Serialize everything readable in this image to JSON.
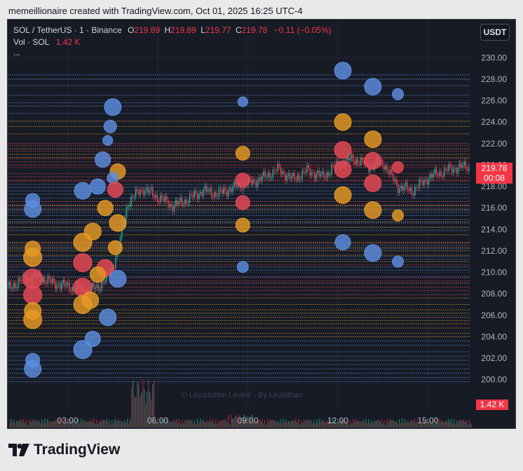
{
  "header": {
    "caption": "memeillionaire created with TradingView.com, Oct 01, 2025 16:25 UTC-4"
  },
  "legend": {
    "symbol": "SOL / TetherUS · 1 · Binance",
    "o_label": "O",
    "o_value": "219.89",
    "h_label": "H",
    "h_value": "219.89",
    "l_label": "L",
    "l_value": "219.77",
    "c_label": "C",
    "c_value": "219.78",
    "change": "−0.11 (−0.05%)",
    "vol_label": "Vol · SOL",
    "vol_value": "1.42 K",
    "more": "..."
  },
  "currency_button": "USDT",
  "price_label": {
    "price": "219.78",
    "countdown": "00:08"
  },
  "volume_label": "1.42 K",
  "watermark": "© Liquidation Levels - By Leviathan",
  "logo": "TradingView",
  "colors": {
    "background": "#171b26",
    "up": "#26a69a",
    "down": "#f23645",
    "blue_levels": "#5b8ee0",
    "orange_levels": "#e69a25",
    "red_levels": "#e84a55"
  },
  "chart_data": {
    "type": "line",
    "title": "SOL / TetherUS · 1 · Binance",
    "y_ticks": [
      "230.00",
      "228.00",
      "226.00",
      "224.00",
      "222.00",
      "220.00",
      "218.00",
      "216.00",
      "214.00",
      "212.00",
      "210.00",
      "208.00",
      "206.00",
      "204.00",
      "202.00",
      "200.00"
    ],
    "x_ticks": [
      "03:00",
      "06:00",
      "09:00",
      "12:00",
      "15:00"
    ],
    "ylim": [
      198.8,
      231.2
    ],
    "xlim": [
      "01:00",
      "16:25"
    ],
    "series": [
      {
        "name": "SOL / TetherUS",
        "x": [
          "01:00",
          "01:30",
          "02:00",
          "02:30",
          "03:00",
          "03:30",
          "04:00",
          "04:15",
          "04:30",
          "04:45",
          "05:00",
          "05:15",
          "05:30",
          "06:00",
          "06:30",
          "07:00",
          "07:30",
          "08:00",
          "08:30",
          "09:00",
          "09:30",
          "10:00",
          "10:30",
          "11:00",
          "11:30",
          "12:00",
          "12:30",
          "13:00",
          "13:30",
          "14:00",
          "14:30",
          "15:00",
          "15:30",
          "16:00",
          "16:25"
        ],
        "values": [
          208.5,
          209.3,
          209.6,
          209.0,
          208.7,
          208.2,
          208.6,
          209.4,
          210.5,
          213.0,
          216.5,
          217.2,
          217.8,
          217.0,
          216.2,
          216.8,
          217.6,
          217.3,
          217.9,
          218.3,
          218.8,
          219.6,
          218.7,
          219.5,
          218.9,
          220.1,
          220.6,
          219.9,
          220.2,
          218.0,
          217.6,
          218.8,
          219.4,
          219.8,
          219.78
        ]
      }
    ],
    "volume_max_note": "1.42 K",
    "liquidation_levels": {
      "blue": [
        228.4,
        228.0,
        227.4,
        226.5,
        225.8,
        225.5,
        224.8,
        218.2,
        217.9,
        217.6,
        217.3,
        216.9,
        216.6,
        216.2,
        215.9,
        215.6,
        215.3,
        214.9,
        214.6,
        214.2,
        213.9,
        212.5,
        212.2,
        211.5,
        211.2,
        210.5,
        210.2,
        209.6,
        209.0,
        203.6,
        203.2,
        202.6,
        202.2,
        201.8,
        201.4,
        201.0,
        200.6,
        200.2,
        199.8
      ],
      "orange": [
        224.1,
        223.6,
        222.9,
        221.5,
        221.0,
        220.7,
        216.2,
        215.8,
        214.7,
        214.2,
        213.5,
        212.8,
        212.3,
        212.0,
        211.6,
        211.0,
        207.6,
        207.0,
        206.5,
        206.2,
        205.8,
        205.5,
        205.2,
        204.8,
        204.3,
        204.0
      ],
      "red": [
        222.0,
        221.8,
        221.3,
        220.6,
        220.3,
        220.0,
        219.2,
        218.9,
        218.6,
        218.5,
        216.6,
        216.3,
        212.7,
        210.7,
        209.5,
        209.2,
        209.0,
        208.6,
        208.3,
        207.9
      ]
    },
    "bubbles": [
      {
        "x": "04:30",
        "y": 225.4,
        "r": 12,
        "c": "blue"
      },
      {
        "x": "04:25",
        "y": 223.6,
        "r": 9,
        "c": "blue"
      },
      {
        "x": "04:20",
        "y": 222.3,
        "r": 7,
        "c": "blue"
      },
      {
        "x": "04:10",
        "y": 220.5,
        "r": 11,
        "c": "blue"
      },
      {
        "x": "04:40",
        "y": 219.4,
        "r": 11,
        "c": "orange"
      },
      {
        "x": "04:30",
        "y": 218.8,
        "r": 8,
        "c": "blue"
      },
      {
        "x": "04:35",
        "y": 217.7,
        "r": 11,
        "c": "red"
      },
      {
        "x": "04:00",
        "y": 218.0,
        "r": 11,
        "c": "blue"
      },
      {
        "x": "03:30",
        "y": 217.6,
        "r": 12,
        "c": "blue"
      },
      {
        "x": "04:15",
        "y": 216.0,
        "r": 11,
        "c": "orange"
      },
      {
        "x": "01:50",
        "y": 216.7,
        "r": 10,
        "c": "blue"
      },
      {
        "x": "01:50",
        "y": 215.9,
        "r": 12,
        "c": "blue"
      },
      {
        "x": "04:40",
        "y": 214.6,
        "r": 12,
        "c": "orange"
      },
      {
        "x": "03:50",
        "y": 213.8,
        "r": 12,
        "c": "orange"
      },
      {
        "x": "03:30",
        "y": 212.8,
        "r": 13,
        "c": "orange"
      },
      {
        "x": "04:35",
        "y": 212.3,
        "r": 10,
        "c": "orange"
      },
      {
        "x": "01:50",
        "y": 212.2,
        "r": 11,
        "c": "orange"
      },
      {
        "x": "01:50",
        "y": 211.4,
        "r": 13,
        "c": "orange"
      },
      {
        "x": "03:30",
        "y": 210.9,
        "r": 13,
        "c": "red"
      },
      {
        "x": "04:15",
        "y": 210.4,
        "r": 12,
        "c": "red"
      },
      {
        "x": "01:50",
        "y": 209.4,
        "r": 14,
        "c": "red"
      },
      {
        "x": "04:40",
        "y": 209.4,
        "r": 12,
        "c": "blue"
      },
      {
        "x": "03:30",
        "y": 208.6,
        "r": 13,
        "c": "red"
      },
      {
        "x": "04:00",
        "y": 209.8,
        "r": 11,
        "c": "orange"
      },
      {
        "x": "01:50",
        "y": 207.9,
        "r": 13,
        "c": "red"
      },
      {
        "x": "03:45",
        "y": 207.4,
        "r": 12,
        "c": "orange"
      },
      {
        "x": "03:30",
        "y": 207.0,
        "r": 13,
        "c": "orange"
      },
      {
        "x": "01:50",
        "y": 206.4,
        "r": 12,
        "c": "orange"
      },
      {
        "x": "01:50",
        "y": 205.6,
        "r": 13,
        "c": "orange"
      },
      {
        "x": "04:20",
        "y": 205.8,
        "r": 12,
        "c": "blue"
      },
      {
        "x": "03:50",
        "y": 203.8,
        "r": 11,
        "c": "blue"
      },
      {
        "x": "03:30",
        "y": 202.8,
        "r": 13,
        "c": "blue"
      },
      {
        "x": "01:50",
        "y": 201.8,
        "r": 10,
        "c": "blue"
      },
      {
        "x": "01:50",
        "y": 201.0,
        "r": 12,
        "c": "blue"
      },
      {
        "x": "08:50",
        "y": 225.9,
        "r": 7,
        "c": "blue"
      },
      {
        "x": "08:50",
        "y": 221.1,
        "r": 10,
        "c": "orange"
      },
      {
        "x": "08:50",
        "y": 218.6,
        "r": 10,
        "c": "red"
      },
      {
        "x": "08:50",
        "y": 216.5,
        "r": 10,
        "c": "red"
      },
      {
        "x": "08:50",
        "y": 214.4,
        "r": 10,
        "c": "orange"
      },
      {
        "x": "08:50",
        "y": 210.5,
        "r": 8,
        "c": "blue"
      },
      {
        "x": "12:10",
        "y": 228.8,
        "r": 12,
        "c": "blue"
      },
      {
        "x": "13:10",
        "y": 227.3,
        "r": 12,
        "c": "blue"
      },
      {
        "x": "14:00",
        "y": 226.6,
        "r": 8,
        "c": "blue"
      },
      {
        "x": "12:10",
        "y": 224.0,
        "r": 12,
        "c": "orange"
      },
      {
        "x": "13:10",
        "y": 222.4,
        "r": 12,
        "c": "orange"
      },
      {
        "x": "12:10",
        "y": 221.4,
        "r": 12,
        "c": "red"
      },
      {
        "x": "13:10",
        "y": 220.4,
        "r": 12,
        "c": "red"
      },
      {
        "x": "12:10",
        "y": 219.6,
        "r": 12,
        "c": "red"
      },
      {
        "x": "14:00",
        "y": 219.8,
        "r": 8,
        "c": "red"
      },
      {
        "x": "13:10",
        "y": 218.3,
        "r": 12,
        "c": "red"
      },
      {
        "x": "12:10",
        "y": 217.2,
        "r": 12,
        "c": "orange"
      },
      {
        "x": "13:10",
        "y": 215.8,
        "r": 12,
        "c": "orange"
      },
      {
        "x": "14:00",
        "y": 215.3,
        "r": 8,
        "c": "orange"
      },
      {
        "x": "12:10",
        "y": 212.8,
        "r": 11,
        "c": "blue"
      },
      {
        "x": "13:10",
        "y": 211.8,
        "r": 12,
        "c": "blue"
      },
      {
        "x": "14:00",
        "y": 211.0,
        "r": 8,
        "c": "blue"
      }
    ]
  }
}
